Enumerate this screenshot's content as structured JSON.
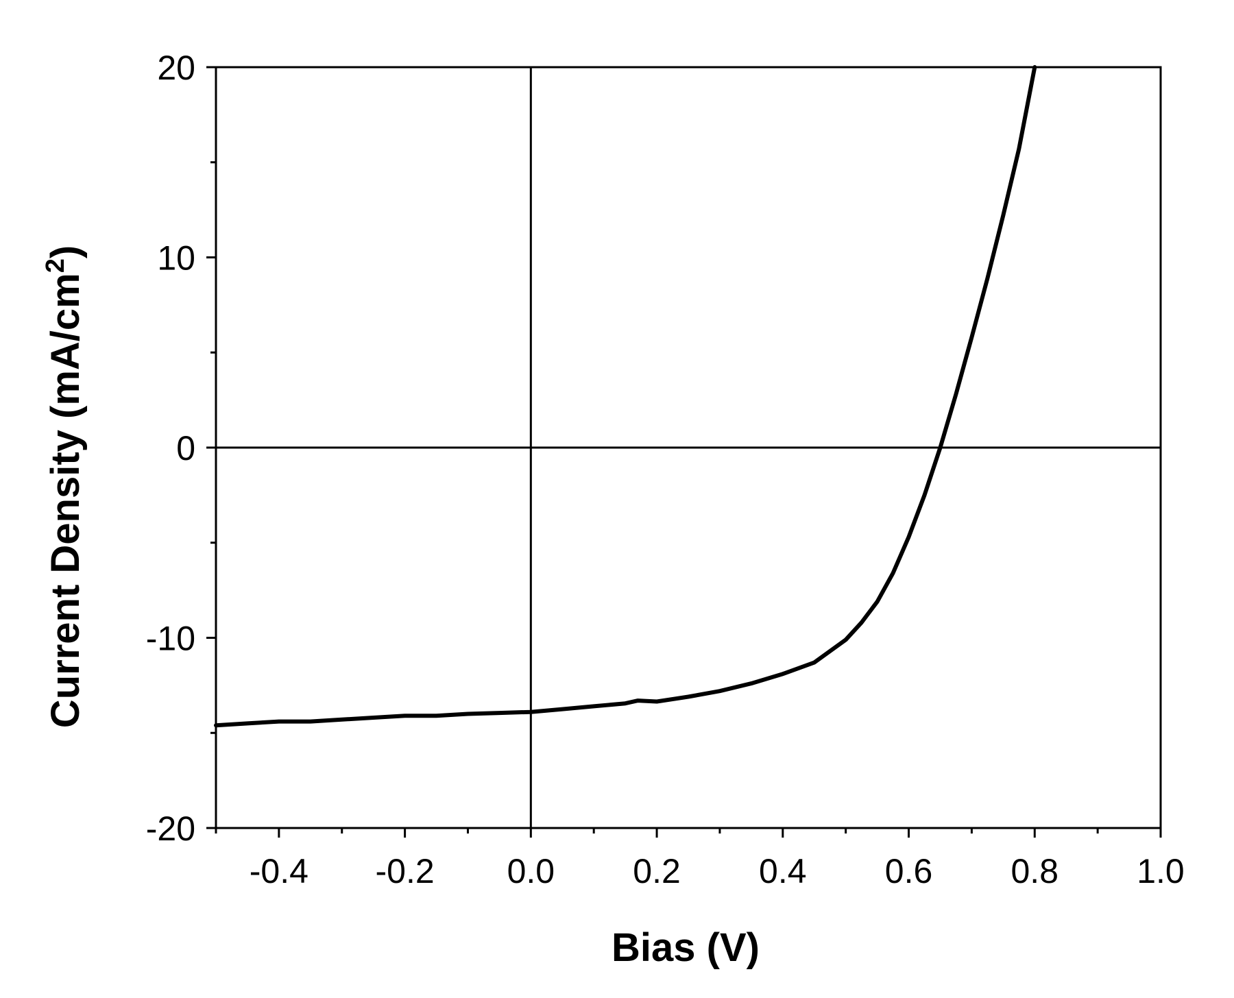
{
  "chart_data": {
    "type": "line",
    "xlabel": "Bias (V)",
    "ylabel_main": "Current Density (mA/cm",
    "ylabel_sup": "2",
    "ylabel_close": ")",
    "xlim": [
      -0.5,
      1.0
    ],
    "ylim": [
      -20,
      20
    ],
    "x_ticks": [
      -0.4,
      -0.2,
      0.0,
      0.2,
      0.4,
      0.6,
      0.8,
      1.0
    ],
    "x_tick_labels": [
      "-0.4",
      "-0.2",
      "0.0",
      "0.2",
      "0.4",
      "0.6",
      "0.8",
      "1.0"
    ],
    "x_minor_ticks": [
      -0.5,
      -0.3,
      -0.1,
      0.1,
      0.3,
      0.5,
      0.7,
      0.9
    ],
    "y_ticks": [
      -20,
      -10,
      0,
      10,
      20
    ],
    "y_tick_labels": [
      "-20",
      "-10",
      "0",
      "10",
      "20"
    ],
    "y_minor_ticks": [
      -15,
      -5,
      5,
      15
    ],
    "reference_lines": {
      "x": 0,
      "y": 0
    },
    "grid": false,
    "line_color": "#000000",
    "series": [
      {
        "x": [
          -0.5,
          -0.45,
          -0.4,
          -0.35,
          -0.3,
          -0.25,
          -0.2,
          -0.15,
          -0.1,
          -0.05,
          0.0,
          0.05,
          0.1,
          0.15,
          0.17,
          0.2,
          0.25,
          0.3,
          0.35,
          0.4,
          0.45,
          0.5,
          0.525,
          0.55,
          0.575,
          0.6,
          0.625,
          0.65,
          0.675,
          0.7,
          0.725,
          0.75,
          0.775,
          0.8
        ],
        "y": [
          -14.6,
          -14.5,
          -14.4,
          -14.4,
          -14.3,
          -14.2,
          -14.1,
          -14.1,
          -14.0,
          -13.95,
          -13.9,
          -13.75,
          -13.6,
          -13.45,
          -13.3,
          -13.35,
          -13.1,
          -12.8,
          -12.4,
          -11.9,
          -11.3,
          -10.1,
          -9.2,
          -8.1,
          -6.6,
          -4.7,
          -2.5,
          0.0,
          2.8,
          5.8,
          8.9,
          12.2,
          15.7,
          20.0
        ]
      }
    ]
  }
}
